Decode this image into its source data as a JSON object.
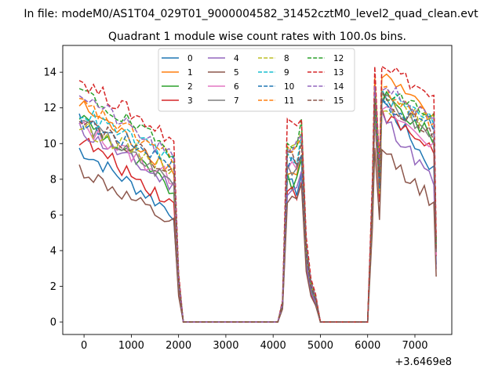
{
  "chart_data": {
    "type": "line",
    "suptitle": "In file: modeM0/AS1T04_029T01_9000004582_31452cztM0_level2_quad_clean.evt",
    "title": "Quadrant 1 module wise count rates with 100.0s bins.",
    "xlabel": "",
    "ylabel": "",
    "x_offset_label": "+3.6469e8",
    "xlim": [
      -450,
      7780
    ],
    "ylim": [
      -0.7,
      15.5
    ],
    "xticks": [
      0,
      1000,
      2000,
      3000,
      4000,
      5000,
      6000,
      7000
    ],
    "yticks": [
      0,
      2,
      4,
      6,
      8,
      10,
      12,
      14
    ],
    "legend_position": "upper center",
    "segments": [
      {
        "name": "segment-1",
        "x_start": -100,
        "x_end": 1900,
        "shape": "decay"
      },
      {
        "name": "segment-2",
        "x_start": 4300,
        "x_end": 4600,
        "shape": "flat"
      },
      {
        "name": "segment-3",
        "x_start": 6200,
        "x_end": 7400,
        "shape": "decay"
      }
    ],
    "zero_x": [
      2100,
      2200,
      2300,
      2400,
      2500,
      2600,
      2700,
      2800,
      2900,
      3000,
      3100,
      3200,
      3300,
      3400,
      3500,
      3600,
      3700,
      3800,
      3900,
      4000,
      4100,
      5000,
      5100,
      5200,
      5300,
      5400,
      5500,
      5600,
      5700,
      5800,
      5900,
      6000
    ],
    "ramp_points": [
      {
        "x": 2000,
        "frac": 0.27
      },
      {
        "x": 4200,
        "frac": 0.11
      },
      {
        "x": 4700,
        "frac": 0.43
      },
      {
        "x": 4800,
        "frac": 0.22
      },
      {
        "x": 4900,
        "frac": 0.14
      },
      {
        "x": 6100,
        "frac": 0.55
      },
      {
        "x": 6250,
        "frac": 0.62
      },
      {
        "x": 7450,
        "frac": 0.38
      }
    ],
    "series": [
      {
        "name": "0",
        "color": "#1f77b4",
        "dash": "solid",
        "seg1": [
          9.7,
          6.1
        ],
        "seg2": 7.5,
        "seg3": [
          12.5,
          8.5
        ]
      },
      {
        "name": "1",
        "color": "#ff7f0e",
        "dash": "solid",
        "seg1": [
          12.2,
          8.5
        ],
        "seg2": 8.3,
        "seg3": [
          13.9,
          11.3
        ]
      },
      {
        "name": "2",
        "color": "#2ca02c",
        "dash": "solid",
        "seg1": [
          11.6,
          7.3
        ],
        "seg2": 7.8,
        "seg3": [
          12.7,
          10.3
        ]
      },
      {
        "name": "3",
        "color": "#d62728",
        "dash": "solid",
        "seg1": [
          10.3,
          6.6
        ],
        "seg2": 7.3,
        "seg3": [
          11.6,
          9.7
        ]
      },
      {
        "name": "4",
        "color": "#9467bd",
        "dash": "solid",
        "seg1": [
          10.8,
          7.6
        ],
        "seg2": 7.6,
        "seg3": [
          11.6,
          7.8
        ]
      },
      {
        "name": "5",
        "color": "#8c564b",
        "dash": "solid",
        "seg1": [
          8.6,
          5.4
        ],
        "seg2": 6.6,
        "seg3": [
          9.6,
          6.7
        ]
      },
      {
        "name": "6",
        "color": "#e377c2",
        "dash": "solid",
        "seg1": [
          11.0,
          8.0
        ],
        "seg2": 9.0,
        "seg3": [
          12.0,
          9.9
        ]
      },
      {
        "name": "7",
        "color": "#7f7f7f",
        "dash": "solid",
        "seg1": [
          11.3,
          7.8
        ],
        "seg2": 8.7,
        "seg3": [
          12.5,
          10.3
        ]
      },
      {
        "name": "8",
        "color": "#bcbd22",
        "dash": "dashed",
        "seg1": [
          11.0,
          8.6
        ],
        "seg2": 9.7,
        "seg3": [
          12.2,
          11.2
        ]
      },
      {
        "name": "9",
        "color": "#17becf",
        "dash": "dashed",
        "seg1": [
          11.8,
          9.1
        ],
        "seg2": 9.3,
        "seg3": [
          12.7,
          11.4
        ]
      },
      {
        "name": "10",
        "color": "#1f77b4",
        "dash": "dashed",
        "seg1": [
          11.3,
          9.0
        ],
        "seg2": 8.9,
        "seg3": [
          12.3,
          10.9
        ]
      },
      {
        "name": "11",
        "color": "#ff7f0e",
        "dash": "dashed",
        "seg1": [
          12.3,
          9.2
        ],
        "seg2": 9.6,
        "seg3": [
          13.1,
          11.2
        ]
      },
      {
        "name": "12",
        "color": "#2ca02c",
        "dash": "dashed",
        "seg1": [
          13.0,
          9.5
        ],
        "seg2": 10.3,
        "seg3": [
          13.0,
          11.6
        ]
      },
      {
        "name": "13",
        "color": "#d62728",
        "dash": "dashed",
        "seg1": [
          13.6,
          10.2
        ],
        "seg2": 11.1,
        "seg3": [
          14.6,
          12.5
        ]
      },
      {
        "name": "14",
        "color": "#9467bd",
        "dash": "dashed",
        "seg1": [
          12.9,
          9.1
        ],
        "seg2": 9.9,
        "seg3": [
          13.4,
          11.1
        ]
      },
      {
        "name": "15",
        "color": "#8c564b",
        "dash": "dashed",
        "seg1": [
          11.6,
          8.4
        ],
        "seg2": 9.2,
        "seg3": [
          12.6,
          10.5
        ]
      }
    ]
  }
}
